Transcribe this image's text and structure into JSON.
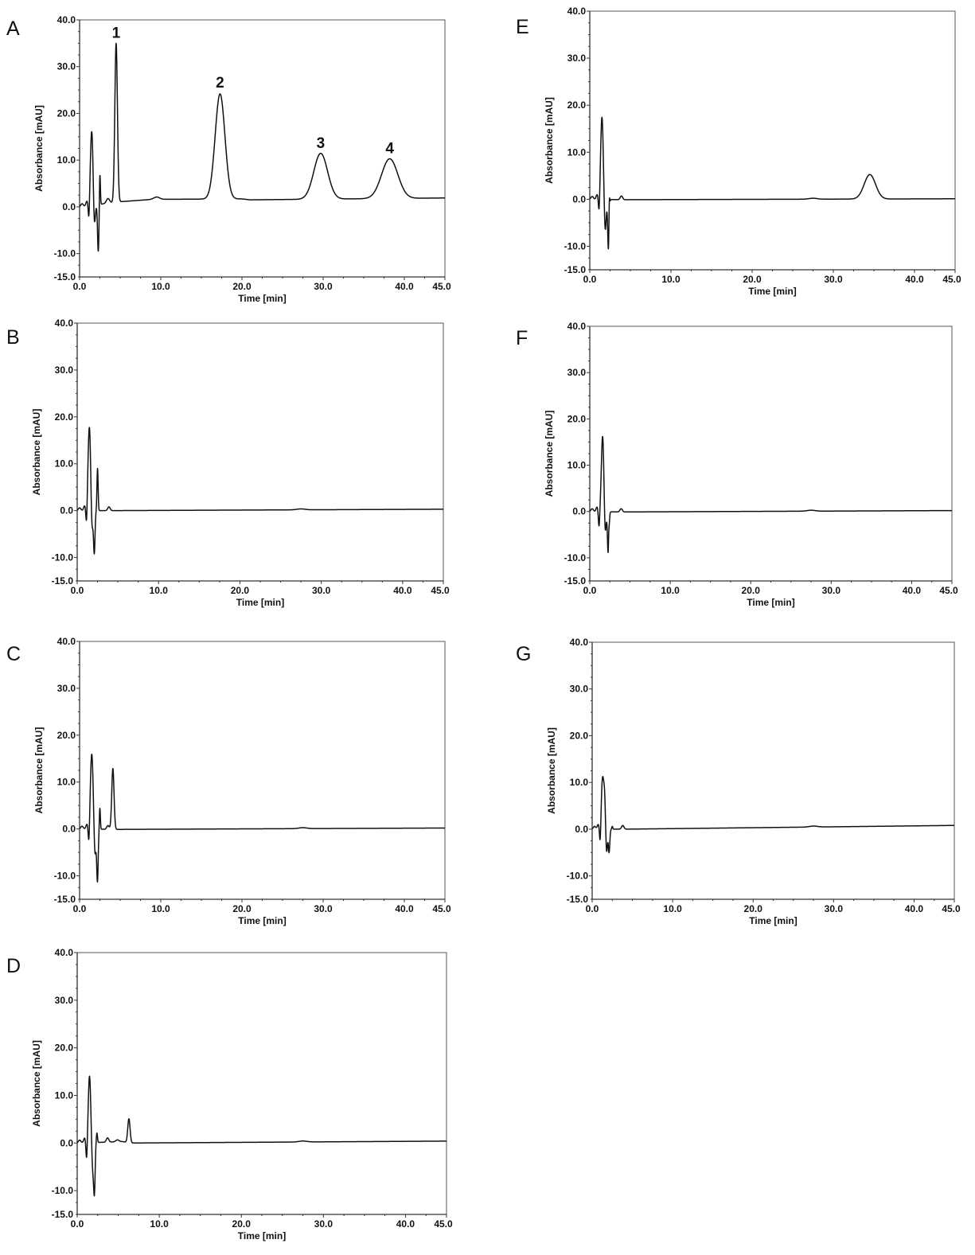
{
  "chart_data": [
    {
      "panel": "A",
      "type": "line",
      "xlabel": "Time [min]",
      "ylabel": "Absorbance [mAU]",
      "xlim": [
        0,
        45
      ],
      "ylim": [
        -15,
        40
      ],
      "xticks": [
        "0.0",
        "10.0",
        "20.0",
        "30.0",
        "40.0",
        "45.0"
      ],
      "yticks": [
        "-15.0",
        "-10.0",
        "0.0",
        "10.0",
        "20.0",
        "30.0",
        "40.0"
      ],
      "baseline": [
        [
          0,
          0
        ],
        [
          5.0,
          1.1
        ],
        [
          9.0,
          1.6
        ],
        [
          20.0,
          1.7
        ],
        [
          21.0,
          1.5
        ],
        [
          27.0,
          1.6
        ],
        [
          45,
          1.9
        ]
      ],
      "peaks": [
        {
          "t": 1.5,
          "h": 16,
          "w": 0.17
        },
        {
          "t": 1.8,
          "h": -6,
          "w": 0.12
        },
        {
          "t": 2.3,
          "h": -10,
          "w": 0.09
        },
        {
          "t": 2.5,
          "h": 7,
          "w": 0.06
        },
        {
          "t": 1.15,
          "h": -4,
          "w": 0.08
        },
        {
          "t": 0.3,
          "h": 0.6,
          "w": 0.15
        },
        {
          "t": 0.9,
          "h": 1.0,
          "w": 0.12
        },
        {
          "t": 3.5,
          "h": 1.0,
          "w": 0.2
        },
        {
          "t": 4.5,
          "h": 34,
          "w": 0.16
        },
        {
          "t": 9.5,
          "h": 0.5,
          "w": 0.35
        },
        {
          "t": 17.3,
          "h": 22.5,
          "w": 0.6
        },
        {
          "t": 29.7,
          "h": 9.8,
          "w": 0.85
        },
        {
          "t": 38.2,
          "h": 8.5,
          "w": 1.0
        }
      ],
      "peak_labels": [
        {
          "text": "1",
          "t": 4.5,
          "y": 35.0
        },
        {
          "text": "2",
          "t": 17.3,
          "y": 24.3
        },
        {
          "text": "3",
          "t": 29.7,
          "y": 11.4
        },
        {
          "text": "4",
          "t": 38.2,
          "y": 10.3
        }
      ]
    },
    {
      "panel": "B",
      "type": "line",
      "xlabel": "Time [min]",
      "ylabel": "Absorbance [mAU]",
      "xlim": [
        0,
        45
      ],
      "ylim": [
        -15,
        40
      ],
      "xticks": [
        "0.0",
        "10.0",
        "20.0",
        "30.0",
        "40.0",
        "45.0"
      ],
      "yticks": [
        "-15.0",
        "-10.0",
        "0.0",
        "10.0",
        "20.0",
        "30.0",
        "40.0"
      ],
      "baseline": [
        [
          0,
          0
        ],
        [
          4.0,
          0
        ],
        [
          45,
          0.3
        ]
      ],
      "peaks": [
        {
          "t": 1.5,
          "h": 18,
          "w": 0.17
        },
        {
          "t": 1.8,
          "h": -6,
          "w": 0.12
        },
        {
          "t": 2.1,
          "h": -9,
          "w": 0.09
        },
        {
          "t": 2.5,
          "h": 9,
          "w": 0.07
        },
        {
          "t": 1.15,
          "h": -4,
          "w": 0.08
        },
        {
          "t": 0.3,
          "h": 0.6,
          "w": 0.15
        },
        {
          "t": 0.9,
          "h": 1.0,
          "w": 0.12
        },
        {
          "t": 3.9,
          "h": 0.8,
          "w": 0.15
        },
        {
          "t": 27.5,
          "h": 0.2,
          "w": 0.5
        }
      ],
      "peak_labels": []
    },
    {
      "panel": "C",
      "type": "line",
      "xlabel": "Time [min]",
      "ylabel": "Absorbance [mAU]",
      "xlim": [
        0,
        45
      ],
      "ylim": [
        -15,
        40
      ],
      "xticks": [
        "0.0",
        "10.0",
        "20.0",
        "30.0",
        "40.0",
        "45.0"
      ],
      "yticks": [
        "-15.0",
        "-10.0",
        "0.0",
        "10.0",
        "20.0",
        "30.0",
        "40.0"
      ],
      "baseline": [
        [
          0,
          0
        ],
        [
          4.5,
          -0.1
        ],
        [
          45,
          0.2
        ]
      ],
      "peaks": [
        {
          "t": 1.5,
          "h": 16,
          "w": 0.17
        },
        {
          "t": 1.9,
          "h": -6,
          "w": 0.12
        },
        {
          "t": 2.2,
          "h": -11,
          "w": 0.09
        },
        {
          "t": 2.5,
          "h": 4.5,
          "w": 0.06
        },
        {
          "t": 1.15,
          "h": -4,
          "w": 0.08
        },
        {
          "t": 0.3,
          "h": 0.6,
          "w": 0.15
        },
        {
          "t": 0.9,
          "h": 1.0,
          "w": 0.12
        },
        {
          "t": 3.5,
          "h": 0.8,
          "w": 0.15
        },
        {
          "t": 4.1,
          "h": 13,
          "w": 0.14
        },
        {
          "t": 27.5,
          "h": 0.2,
          "w": 0.5
        }
      ],
      "peak_labels": []
    },
    {
      "panel": "D",
      "type": "line",
      "xlabel": "Time [min]",
      "ylabel": "Absorbance [mAU]",
      "xlim": [
        0,
        45
      ],
      "ylim": [
        -15,
        40
      ],
      "xticks": [
        "0.0",
        "10.0",
        "20.0",
        "30.0",
        "40.0",
        "45.0"
      ],
      "yticks": [
        "-15.0",
        "-10.0",
        "0.0",
        "10.0",
        "20.0",
        "30.0",
        "40.0"
      ],
      "baseline": [
        [
          0,
          0
        ],
        [
          4.0,
          0.2
        ],
        [
          5.5,
          0.3
        ],
        [
          6.7,
          0
        ],
        [
          45,
          0.4
        ]
      ],
      "peaks": [
        {
          "t": 1.5,
          "h": 14,
          "w": 0.15
        },
        {
          "t": 1.9,
          "h": -6,
          "w": 0.12
        },
        {
          "t": 2.1,
          "h": -9.5,
          "w": 0.09
        },
        {
          "t": 2.4,
          "h": 2.0,
          "w": 0.07
        },
        {
          "t": 1.15,
          "h": -4,
          "w": 0.08
        },
        {
          "t": 0.3,
          "h": 0.6,
          "w": 0.15
        },
        {
          "t": 0.9,
          "h": 1.0,
          "w": 0.12
        },
        {
          "t": 3.7,
          "h": 0.9,
          "w": 0.15
        },
        {
          "t": 4.9,
          "h": 0.4,
          "w": 0.2
        },
        {
          "t": 6.3,
          "h": 5,
          "w": 0.14
        },
        {
          "t": 27.5,
          "h": 0.2,
          "w": 0.5
        }
      ],
      "peak_labels": []
    },
    {
      "panel": "E",
      "type": "line",
      "xlabel": "Time [min]",
      "ylabel": "Absorbance [mAU]",
      "xlim": [
        0,
        45
      ],
      "ylim": [
        -15,
        40
      ],
      "xticks": [
        "0.0",
        "10.0",
        "20.0",
        "30.0",
        "40.0",
        "45.0"
      ],
      "yticks": [
        "-15.0",
        "-10.0",
        "0.0",
        "10.0",
        "20.0",
        "30.0",
        "40.0"
      ],
      "baseline": [
        [
          0,
          0
        ],
        [
          4.0,
          -0.1
        ],
        [
          45,
          0.1
        ]
      ],
      "peaks": [
        {
          "t": 1.5,
          "h": 17.5,
          "w": 0.16
        },
        {
          "t": 1.9,
          "h": -7,
          "w": 0.12
        },
        {
          "t": 2.3,
          "h": -11,
          "w": 0.09
        },
        {
          "t": 2.4,
          "h": 5,
          "w": 0.05
        },
        {
          "t": 1.15,
          "h": -3.5,
          "w": 0.08
        },
        {
          "t": 0.3,
          "h": 0.6,
          "w": 0.15
        },
        {
          "t": 0.9,
          "h": 1.0,
          "w": 0.12
        },
        {
          "t": 3.9,
          "h": 0.8,
          "w": 0.15
        },
        {
          "t": 27.5,
          "h": 0.2,
          "w": 0.5
        },
        {
          "t": 34.5,
          "h": 5.2,
          "w": 0.7
        }
      ],
      "peak_labels": []
    },
    {
      "panel": "F",
      "type": "line",
      "xlabel": "Time [min]",
      "ylabel": "Absorbance [mAU]",
      "xlim": [
        0,
        45
      ],
      "ylim": [
        -15,
        40
      ],
      "xticks": [
        "0.0",
        "10.0",
        "20.0",
        "30.0",
        "40.0",
        "45.0"
      ],
      "yticks": [
        "-15.0",
        "-10.0",
        "0.0",
        "10.0",
        "20.0",
        "30.0",
        "40.0"
      ],
      "baseline": [
        [
          0,
          0
        ],
        [
          4.0,
          -0.1
        ],
        [
          45,
          0.2
        ]
      ],
      "peaks": [
        {
          "t": 1.6,
          "h": 16.5,
          "w": 0.16
        },
        {
          "t": 1.9,
          "h": -6,
          "w": 0.12
        },
        {
          "t": 2.3,
          "h": -10.5,
          "w": 0.09
        },
        {
          "t": 2.35,
          "h": 4,
          "w": 0.05
        },
        {
          "t": 1.15,
          "h": -3.5,
          "w": 0.08
        },
        {
          "t": 0.3,
          "h": 0.6,
          "w": 0.15
        },
        {
          "t": 0.9,
          "h": 1.0,
          "w": 0.12
        },
        {
          "t": 3.9,
          "h": 0.7,
          "w": 0.15
        },
        {
          "t": 27.5,
          "h": 0.2,
          "w": 0.5
        }
      ],
      "peak_labels": []
    },
    {
      "panel": "G",
      "type": "line",
      "xlabel": "Time [min]",
      "ylabel": "Absorbance [mAU]",
      "xlim": [
        0,
        45
      ],
      "ylim": [
        -15,
        40
      ],
      "xticks": [
        "0.0",
        "10.0",
        "20.0",
        "30.0",
        "40.0",
        "45.0"
      ],
      "yticks": [
        "-15.0",
        "-10.0",
        "0.0",
        "10.0",
        "20.0",
        "30.0",
        "40.0"
      ],
      "baseline": [
        [
          0,
          0
        ],
        [
          4.0,
          0
        ],
        [
          45,
          0.8
        ]
      ],
      "peaks": [
        {
          "t": 1.3,
          "h": 11,
          "w": 0.16
        },
        {
          "t": 1.55,
          "h": 5,
          "w": 0.1
        },
        {
          "t": 1.8,
          "h": -5,
          "w": 0.1
        },
        {
          "t": 2.1,
          "h": -5,
          "w": 0.09
        },
        {
          "t": 2.5,
          "h": 0.6,
          "w": 0.06
        },
        {
          "t": 1.0,
          "h": -4,
          "w": 0.08
        },
        {
          "t": 0.3,
          "h": 0.6,
          "w": 0.15
        },
        {
          "t": 0.75,
          "h": 1.0,
          "w": 0.12
        },
        {
          "t": 3.8,
          "h": 0.8,
          "w": 0.15
        },
        {
          "t": 27.5,
          "h": 0.2,
          "w": 0.5
        }
      ],
      "peak_labels": []
    }
  ]
}
